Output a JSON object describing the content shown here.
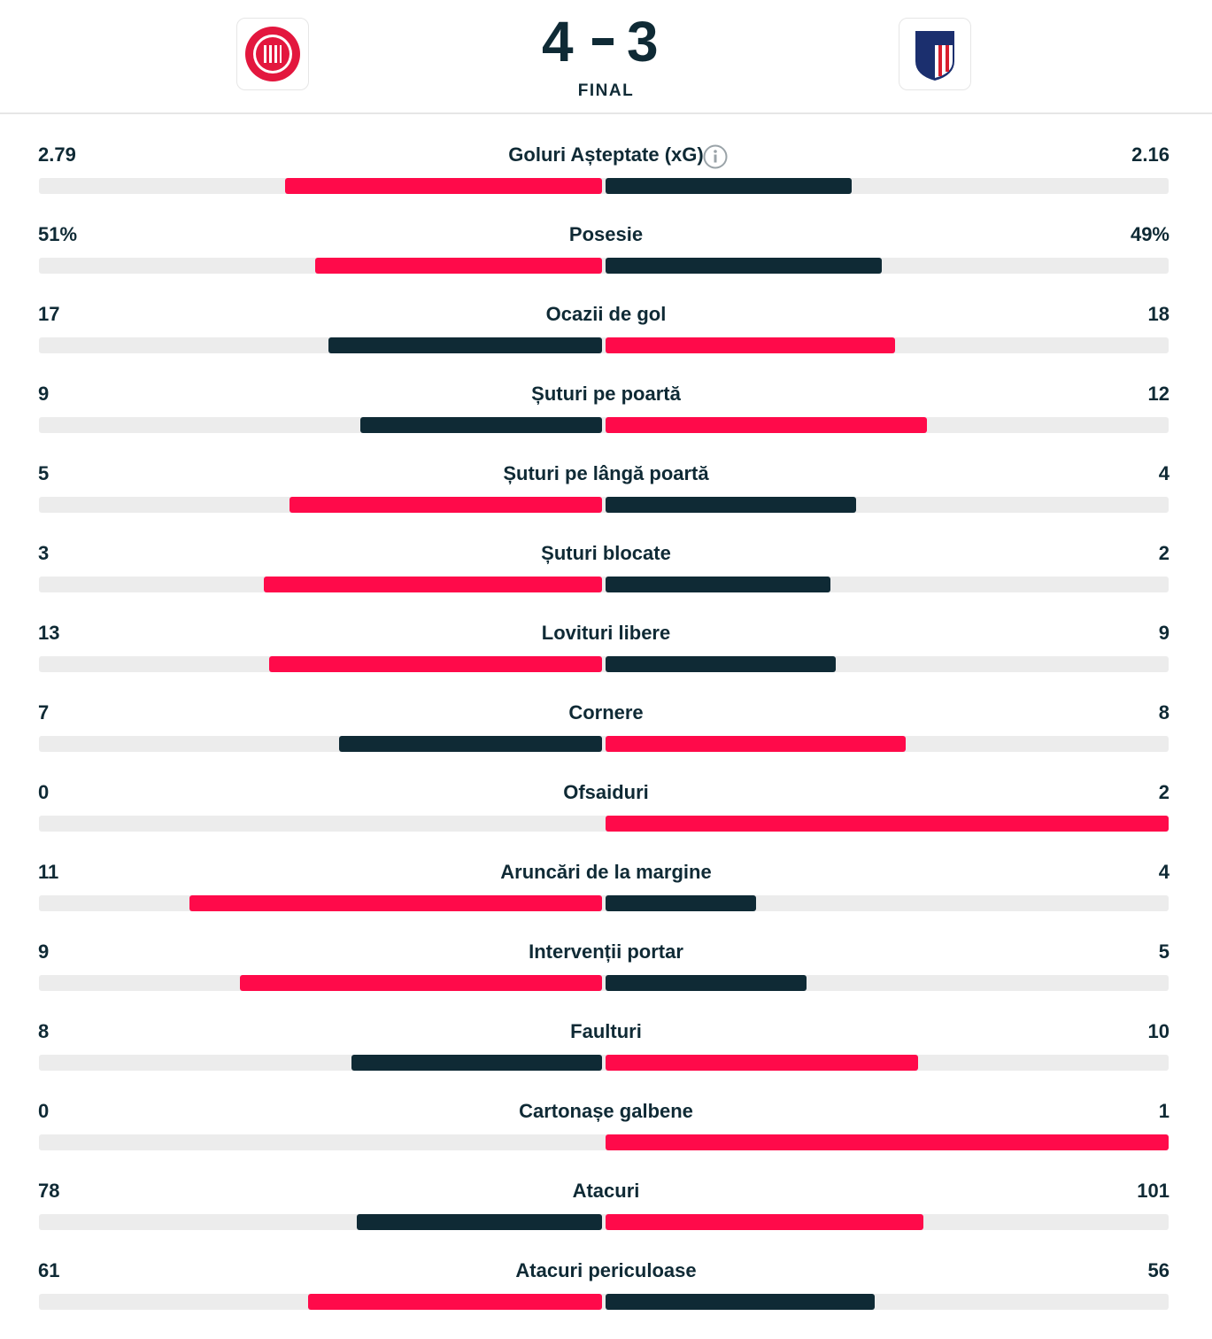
{
  "header": {
    "score": {
      "home": 4,
      "away": 3
    },
    "status": "FINAL"
  },
  "stats": [
    {
      "label": "Goluri Așteptate (xG)",
      "home": 2.79,
      "away": 2.16
    },
    {
      "label": "Posesie",
      "home": {
        "value": 51,
        "label": "51%"
      },
      "away": {
        "value": 49,
        "label": "49%"
      }
    },
    {
      "label": "Ocazii de gol",
      "home": 17,
      "away": 18
    },
    {
      "label": "Șuturi pe poartă",
      "home": 9,
      "away": 12
    },
    {
      "label": "Șuturi pe lângă poartă",
      "home": 5,
      "away": 4
    },
    {
      "label": "Șuturi blocate",
      "home": 3,
      "away": 2
    },
    {
      "label": "Lovituri libere",
      "home": 13,
      "away": 9
    },
    {
      "label": "Cornere",
      "home": 7,
      "away": 8
    },
    {
      "label": "Ofsaiduri",
      "home": 0,
      "away": 2
    },
    {
      "label": "Aruncări de la margine",
      "home": 11,
      "away": 4
    },
    {
      "label": "Intervenții portar",
      "home": 9,
      "away": 5
    },
    {
      "label": "Faulturi",
      "home": 8,
      "away": 10
    },
    {
      "label": "Cartonașe galbene",
      "home": 0,
      "away": 1
    },
    {
      "label": "Atacuri",
      "home": 78,
      "away": 101
    },
    {
      "label": "Atacuri periculoase",
      "home": 61,
      "away": 56
    }
  ]
}
